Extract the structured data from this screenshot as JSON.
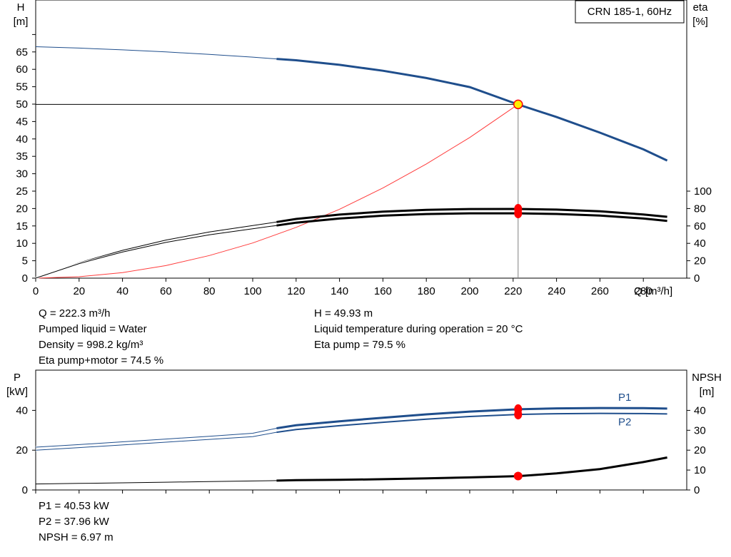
{
  "chart_data": [
    {
      "type": "line",
      "title": "CRN 185-1, 60Hz",
      "xlabel": "Q [m³/h]",
      "ylabel_left_unit": "H",
      "ylabel_left_sub": "[m]",
      "ylabel_right_unit": "eta",
      "ylabel_right_sub": "[%]",
      "xlim": [
        0,
        300
      ],
      "ylim_left": [
        0,
        70
      ],
      "ylim_right": [
        0,
        100
      ],
      "x_ticks": [
        0,
        20,
        40,
        60,
        80,
        100,
        120,
        140,
        160,
        180,
        200,
        220,
        240,
        260,
        280
      ],
      "y_ticks_left": [
        0,
        5,
        10,
        15,
        20,
        25,
        30,
        35,
        40,
        45,
        50,
        55,
        60,
        65
      ],
      "y_ticks_right": [
        0,
        20,
        40,
        60,
        80,
        100
      ],
      "colors": {
        "head": "#1f4e8c",
        "eta": "#000000",
        "system": "#ff3b3b",
        "dutyline": "#000000",
        "operating_point": "#ffee00"
      },
      "series": [
        {
          "key": "head",
          "axis": "left",
          "x": [
            0,
            20,
            40,
            60,
            80,
            100,
            111,
            120,
            140,
            160,
            180,
            200,
            222.3,
            240,
            260,
            280,
            291
          ],
          "y": [
            66.5,
            66.1,
            65.6,
            65.0,
            64.3,
            63.5,
            63.0,
            62.6,
            61.3,
            59.6,
            57.5,
            54.9,
            49.9,
            46.3,
            41.8,
            37.0,
            33.8
          ]
        },
        {
          "key": "eta_pump",
          "axis": "right",
          "x": [
            0,
            20,
            40,
            60,
            80,
            100,
            111,
            120,
            140,
            160,
            180,
            200,
            222.3,
            240,
            260,
            280,
            291
          ],
          "y": [
            0,
            17.8,
            32.0,
            43.8,
            53.0,
            60.5,
            64.5,
            68.0,
            73.0,
            76.5,
            78.5,
            79.4,
            79.5,
            78.8,
            76.8,
            73.2,
            70.5
          ]
        },
        {
          "key": "eta_pump_motor",
          "axis": "right",
          "x": [
            0,
            20,
            40,
            60,
            80,
            100,
            111,
            120,
            140,
            160,
            180,
            200,
            222.3,
            240,
            260,
            280,
            291
          ],
          "y": [
            0,
            16.7,
            30.0,
            41.1,
            49.8,
            56.8,
            60.5,
            63.8,
            68.5,
            71.8,
            73.7,
            74.5,
            74.5,
            73.8,
            72.0,
            68.5,
            65.8
          ]
        },
        {
          "key": "system_curve",
          "axis": "left",
          "x": [
            0,
            20,
            40,
            60,
            80,
            100,
            120,
            140,
            160,
            180,
            200,
            222.3
          ],
          "y": [
            0,
            0.4,
            1.6,
            3.6,
            6.5,
            10.1,
            14.6,
            19.8,
            25.9,
            32.8,
            40.4,
            49.93
          ]
        }
      ],
      "operating_point": {
        "x": 222.3,
        "H": 49.93,
        "eta_pump": 79.5,
        "eta_pump_motor": 74.5
      }
    },
    {
      "type": "line",
      "ylabel_left_unit": "P",
      "ylabel_left_sub": "[kW]",
      "ylabel_right_unit": "NPSH",
      "ylabel_right_sub": "[m]",
      "xlim": [
        0,
        300
      ],
      "ylim_left": [
        0,
        50
      ],
      "ylim_right": [
        0,
        50
      ],
      "y_ticks_left": [
        0,
        20,
        40
      ],
      "y_ticks_right": [
        0,
        10,
        20,
        30,
        40
      ],
      "colors": {
        "power": "#1f4e8c",
        "npsh": "#000000",
        "marker": "#ff0000"
      },
      "series": [
        {
          "name": "P1",
          "axis": "left",
          "x": [
            0,
            20,
            40,
            60,
            80,
            100,
            111,
            120,
            140,
            160,
            180,
            200,
            222.3,
            240,
            260,
            280,
            291
          ],
          "y": [
            21.5,
            22.8,
            24.2,
            25.6,
            27.0,
            28.5,
            31.0,
            32.5,
            34.5,
            36.3,
            38.0,
            39.4,
            40.53,
            41.0,
            41.2,
            41.1,
            40.9
          ]
        },
        {
          "name": "P2",
          "axis": "left",
          "x": [
            0,
            20,
            40,
            60,
            80,
            100,
            111,
            120,
            140,
            160,
            180,
            200,
            222.3,
            240,
            260,
            280,
            291
          ],
          "y": [
            20.0,
            21.3,
            22.6,
            24.0,
            25.4,
            26.8,
            29.0,
            30.4,
            32.3,
            34.0,
            35.6,
            36.9,
            37.96,
            38.3,
            38.5,
            38.4,
            38.2
          ]
        },
        {
          "key": "npsh",
          "axis": "right",
          "x": [
            0,
            20,
            40,
            60,
            80,
            100,
            111,
            120,
            140,
            160,
            180,
            200,
            222.3,
            240,
            260,
            280,
            291
          ],
          "y": [
            3.0,
            3.3,
            3.6,
            3.9,
            4.2,
            4.5,
            4.7,
            4.9,
            5.1,
            5.4,
            5.8,
            6.3,
            6.97,
            8.3,
            10.5,
            14.0,
            16.3
          ]
        }
      ],
      "operating_point": {
        "x": 222.3,
        "P1": 40.53,
        "P2": 37.96,
        "NPSH": 6.97
      }
    }
  ],
  "info_left": [
    "Q = 222.3 m³/h",
    "Pumped liquid = Water",
    "Density = 998.2 kg/m³",
    "Eta pump+motor = 74.5 %"
  ],
  "info_right": [
    "H = 49.93 m",
    "Liquid temperature during operation = 20 °C",
    "Eta pump = 79.5 %"
  ],
  "info_bottom": [
    "P1 = 40.53 kW",
    "P2 = 37.96 kW",
    "NPSH = 6.97 m"
  ]
}
